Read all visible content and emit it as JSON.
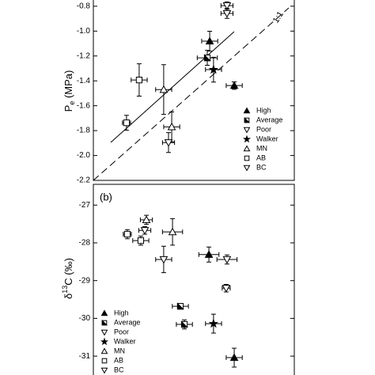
{
  "chart_data": [
    {
      "type": "scatter",
      "ylabel": {
        "main": "P",
        "sub": "e",
        "rest": " (MPa)"
      },
      "annotation": "1:1",
      "xlim": [
        0,
        100
      ],
      "ylim": [
        -2.2,
        -0.75
      ],
      "yticks": [
        -2.2,
        {
          "value": -2.0,
          "label": "-2.0"
        },
        -1.8,
        -1.6,
        -1.4,
        -1.2,
        {
          "value": -1.0,
          "label": "-1.0"
        },
        -0.8
      ],
      "legend": "lower right",
      "series": [
        {
          "name": "High",
          "marker": "triangle-up-filled",
          "color": "#000000",
          "x": [
            57.9,
            70.1
          ],
          "values": [
            -1.081,
            -1.438
          ],
          "xerr": [
            4,
            4
          ],
          "yerr": [
            0.08,
            0.03
          ]
        },
        {
          "name": "Average",
          "marker": "square-half",
          "color": "#000000",
          "x": [
            56.7
          ],
          "values": [
            -1.215
          ],
          "xerr": [
            5
          ],
          "yerr": [
            0.06
          ]
        },
        {
          "name": "Poor",
          "marker": "triangle-down-open",
          "color": "#000000",
          "x": [
            66.5,
            66.5
          ],
          "values": [
            -0.795,
            -0.858
          ],
          "xerr": [
            3,
            3
          ],
          "yerr": [
            0.03,
            0.04
          ]
        },
        {
          "name": "Walker",
          "marker": "star-filled",
          "color": "#000000",
          "x": [
            59.8
          ],
          "values": [
            -1.31
          ],
          "xerr": [
            4
          ],
          "yerr": [
            0.1
          ]
        },
        {
          "name": "MN",
          "marker": "triangle-up-open",
          "color": "#000000",
          "x": [
            39.0,
            35.0
          ],
          "values": [
            -1.77,
            -1.47
          ],
          "xerr": [
            4,
            4
          ],
          "yerr": [
            0.12,
            0.2
          ]
        },
        {
          "name": "AB",
          "marker": "square-open",
          "color": "#000000",
          "x": [
            22.8,
            16.5
          ],
          "values": [
            -1.393,
            -1.737
          ],
          "xerr": [
            4,
            2
          ],
          "yerr": [
            0.13,
            0.06
          ]
        },
        {
          "name": "BC",
          "marker": "triangle-down-open",
          "color": "#000000",
          "x": [
            37.4
          ],
          "values": [
            -1.896
          ],
          "xerr": [
            3
          ],
          "yerr": [
            0.08
          ]
        }
      ]
    },
    {
      "type": "scatter",
      "panel_label": "(b)",
      "ylabel": {
        "main": "δ",
        "sup": "13",
        "rest": "C (‰)"
      },
      "xlim": [
        0,
        100
      ],
      "ylim": [
        -31.5,
        -26.45
      ],
      "yticks": [
        -31,
        -30,
        -29,
        -28,
        -27
      ],
      "legend": "lower left",
      "series": [
        {
          "name": "High",
          "marker": "triangle-up-filled",
          "color": "#000000",
          "x": [
            57.5,
            70.1
          ],
          "values": [
            -28.31,
            -31.04
          ],
          "xerr": [
            5,
            4
          ],
          "yerr": [
            0.2,
            0.25
          ]
        },
        {
          "name": "Average",
          "marker": "square-half",
          "color": "#000000",
          "x": [
            43.3,
            45.3
          ],
          "values": [
            -29.68,
            -30.16
          ],
          "xerr": [
            4,
            4
          ],
          "yerr": [
            0.05,
            0.12
          ]
        },
        {
          "name": "Poor",
          "marker": "triangle-down-open",
          "color": "#000000",
          "x": [
            66.5,
            66.1
          ],
          "values": [
            -28.44,
            -29.2
          ],
          "xerr": [
            5,
            2
          ],
          "yerr": [
            0.12,
            0.1
          ]
        },
        {
          "name": "Walker",
          "marker": "star-filled",
          "color": "#000000",
          "x": [
            59.8
          ],
          "values": [
            -30.14
          ],
          "xerr": [
            4
          ],
          "yerr": [
            0.25
          ]
        },
        {
          "name": "MN",
          "marker": "triangle-up-open",
          "color": "#000000",
          "x": [
            26.4,
            39.4
          ],
          "values": [
            -27.39,
            -27.71
          ],
          "xerr": [
            3,
            5
          ],
          "yerr": [
            0.12,
            0.35
          ]
        },
        {
          "name": "AB",
          "marker": "square-open",
          "color": "#000000",
          "x": [
            16.9,
            23.6
          ],
          "values": [
            -27.77,
            -27.94
          ],
          "xerr": [
            2,
            4
          ],
          "yerr": [
            0.12,
            0.12
          ]
        },
        {
          "name": "BC",
          "marker": "triangle-down-open",
          "color": "#000000",
          "x": [
            25.6,
            35.0
          ],
          "values": [
            -27.67,
            -28.44
          ],
          "xerr": [
            3,
            4
          ],
          "yerr": [
            0.1,
            0.35
          ]
        }
      ]
    }
  ]
}
